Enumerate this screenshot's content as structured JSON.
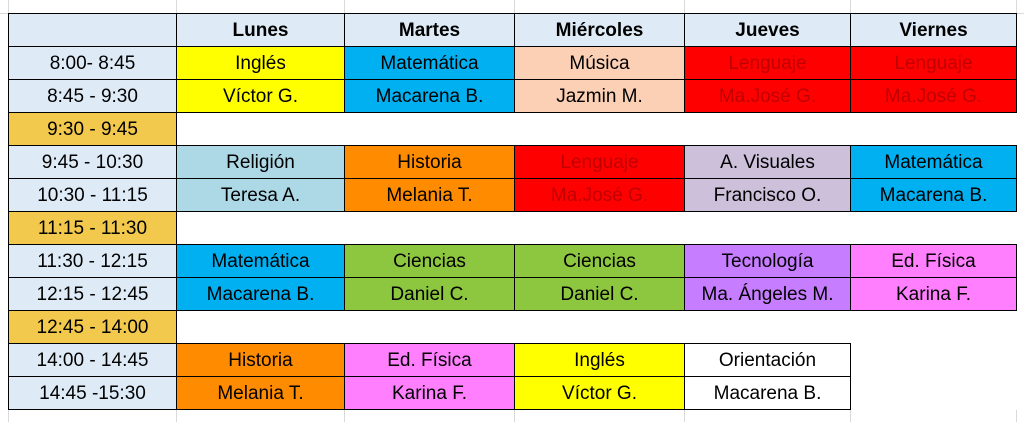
{
  "days": [
    "Lunes",
    "Martes",
    "Miércoles",
    "Jueves",
    "Viernes"
  ],
  "colors": {
    "header": "#deebf7",
    "time": "#deebf7",
    "break": "#f2c94c",
    "ingles": "#ffff00",
    "matematica": "#00b0f0",
    "musica": "#fbd0b5",
    "lenguaje": "#ff0000",
    "religion": "#add8e6",
    "historia": "#ff8c00",
    "visuales": "#ccc0da",
    "ciencias": "#8dc63f",
    "tecnologia": "#c77dff",
    "edfisica": "#ff7fff",
    "orientacion": "#ffffff",
    "lenguaje_text": "#c00000"
  },
  "rows": [
    {
      "time": "8:00- 8:45",
      "cells": [
        {
          "text": "Inglés",
          "color": "ingles"
        },
        {
          "text": "Matemática",
          "color": "matematica"
        },
        {
          "text": "Música",
          "color": "musica"
        },
        {
          "text": "Lenguaje",
          "color": "lenguaje",
          "red": true
        },
        {
          "text": "Lenguaje",
          "color": "lenguaje",
          "red": true
        }
      ]
    },
    {
      "time": "8:45 - 9:30",
      "cells": [
        {
          "text": "Víctor G.",
          "color": "ingles"
        },
        {
          "text": "Macarena B.",
          "color": "matematica"
        },
        {
          "text": "Jazmin M.",
          "color": "musica"
        },
        {
          "text": "Ma.José G.",
          "color": "lenguaje",
          "red": true
        },
        {
          "text": "Ma.José G.",
          "color": "lenguaje",
          "red": true
        }
      ]
    },
    {
      "time": "9:30 - 9:45",
      "break": true
    },
    {
      "time": "9:45 - 10:30",
      "cells": [
        {
          "text": "Religión",
          "color": "religion"
        },
        {
          "text": "Historia",
          "color": "historia"
        },
        {
          "text": "Lenguaje",
          "color": "lenguaje",
          "red": true
        },
        {
          "text": "A. Visuales",
          "color": "visuales"
        },
        {
          "text": "Matemática",
          "color": "matematica"
        }
      ]
    },
    {
      "time": "10:30 - 11:15",
      "cells": [
        {
          "text": "Teresa A.",
          "color": "religion"
        },
        {
          "text": "Melania T.",
          "color": "historia"
        },
        {
          "text": "Ma.José G.",
          "color": "lenguaje",
          "red": true
        },
        {
          "text": "Francisco O.",
          "color": "visuales"
        },
        {
          "text": "Macarena B.",
          "color": "matematica"
        }
      ]
    },
    {
      "time": "11:15 - 11:30",
      "break": true
    },
    {
      "time": "11:30 - 12:15",
      "cells": [
        {
          "text": "Matemática",
          "color": "matematica"
        },
        {
          "text": "Ciencias",
          "color": "ciencias"
        },
        {
          "text": "Ciencias",
          "color": "ciencias"
        },
        {
          "text": "Tecnología",
          "color": "tecnologia"
        },
        {
          "text": "Ed. Física",
          "color": "edfisica"
        }
      ]
    },
    {
      "time": "12:15 - 12:45",
      "cells": [
        {
          "text": "Macarena B.",
          "color": "matematica"
        },
        {
          "text": "Daniel C.",
          "color": "ciencias"
        },
        {
          "text": "Daniel C.",
          "color": "ciencias"
        },
        {
          "text": "Ma. Ángeles M.",
          "color": "tecnologia"
        },
        {
          "text": "Karina F.",
          "color": "edfisica"
        }
      ]
    },
    {
      "time": "12:45 - 14:00",
      "break": true
    },
    {
      "time": "14:00 - 14:45",
      "cells": [
        {
          "text": "Historia",
          "color": "historia"
        },
        {
          "text": "Ed. Física",
          "color": "edfisica"
        },
        {
          "text": "Inglés",
          "color": "ingles"
        },
        {
          "text": "Orientación",
          "color": "orientacion"
        },
        null
      ]
    },
    {
      "time": "14:45 -15:30",
      "cells": [
        {
          "text": "Melania T.",
          "color": "historia"
        },
        {
          "text": "Karina F.",
          "color": "edfisica"
        },
        {
          "text": "Víctor G.",
          "color": "ingles"
        },
        {
          "text": "Macarena B.",
          "color": "orientacion"
        },
        null
      ]
    }
  ]
}
